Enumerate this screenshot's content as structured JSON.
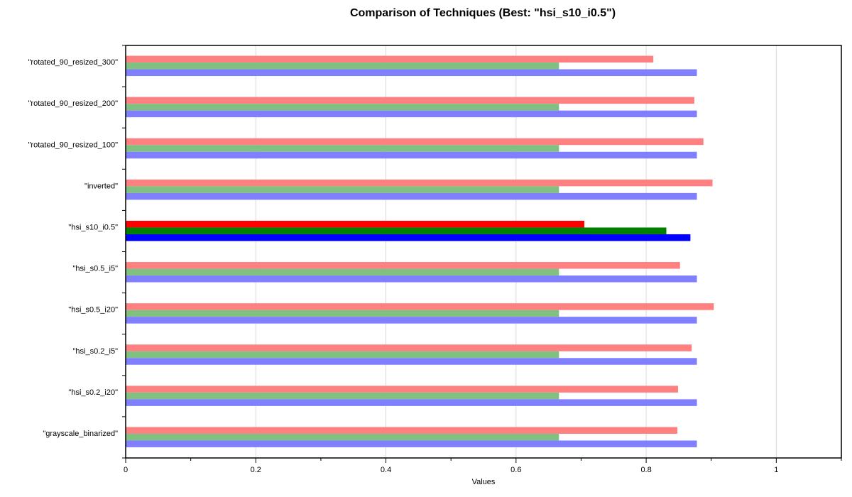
{
  "chart_data": {
    "type": "bar",
    "orientation": "horizontal",
    "title": "Comparison of Techniques (Best: \"hsi_s10_i0.5\")",
    "xlabel": "Values",
    "ylabel": "",
    "xlim": [
      0,
      1.1
    ],
    "x_ticks": [
      "0",
      "0.2",
      "0.4",
      "0.6",
      "0.8",
      "1"
    ],
    "grid": "vertical",
    "legend": "none",
    "highlighted_category": "\"hsi_s10_i0.5\"",
    "categories": [
      "\"grayscale_binarized\"",
      "\"hsi_s0.2_i20\"",
      "\"hsi_s0.2_i5\"",
      "\"hsi_s0.5_i20\"",
      "\"hsi_s0.5_i5\"",
      "\"hsi_s10_i0.5\"",
      "\"inverted\"",
      "\"rotated_90_resized_100\"",
      "\"rotated_90_resized_200\"",
      "\"rotated_90_resized_300\""
    ],
    "series": [
      {
        "color": "#ff8080",
        "highlight_color": "#ff0000",
        "values": [
          0.848,
          0.849,
          0.87,
          0.904,
          0.852,
          0.705,
          0.902,
          0.888,
          0.874,
          0.811
        ]
      },
      {
        "color": "#80c080",
        "highlight_color": "#008000",
        "values": [
          0.666,
          0.666,
          0.666,
          0.666,
          0.666,
          0.831,
          0.666,
          0.666,
          0.666,
          0.666
        ]
      },
      {
        "color": "#8080ff",
        "highlight_color": "#0000ff",
        "values": [
          0.878,
          0.878,
          0.878,
          0.878,
          0.878,
          0.868,
          0.878,
          0.878,
          0.878,
          0.878
        ]
      }
    ]
  }
}
